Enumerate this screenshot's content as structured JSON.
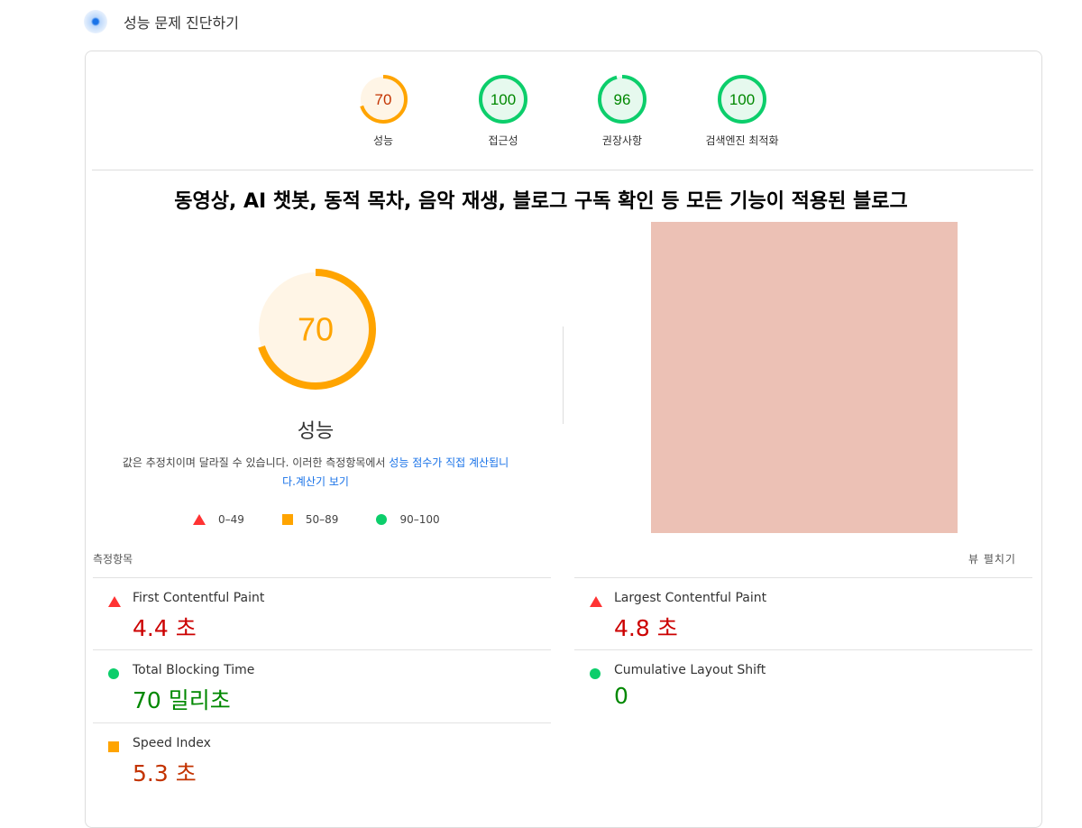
{
  "header": {
    "title": "성능 문제 진단하기"
  },
  "gauges": [
    {
      "score": 70,
      "label": "성능",
      "color": "#ffa400"
    },
    {
      "score": 100,
      "label": "접근성",
      "color": "#0cce6b"
    },
    {
      "score": 96,
      "label": "권장사항",
      "color": "#0cce6b"
    },
    {
      "score": 100,
      "label": "검색엔진 최적화",
      "color": "#0cce6b"
    }
  ],
  "page_title": "동영상, AI 챗봇, 동적 목차, 음악 재생, 블로그 구독 확인 등 모든 기능이 적용된 블로그",
  "main_gauge": {
    "score": 70,
    "label": "성능"
  },
  "note": {
    "text": "값은 추정치이며 달라질 수 있습니다. 이러한 측정항목에서 ",
    "link1": "성능 점수가 직접 계산됩니다.",
    "link2": "계산기 보기"
  },
  "legend": [
    "0–49",
    "50–89",
    "90–100"
  ],
  "metrics_header": "측정항목",
  "expand_label": "뷰 펼치기",
  "metrics": [
    {
      "name": "First Contentful Paint",
      "value": "4.4 초",
      "status": "fail"
    },
    {
      "name": "Largest Contentful Paint",
      "value": "4.8 초",
      "status": "fail"
    },
    {
      "name": "Total Blocking Time",
      "value": "70 밀리초",
      "status": "pass"
    },
    {
      "name": "Cumulative Layout Shift",
      "value": "0",
      "status": "pass"
    },
    {
      "name": "Speed Index",
      "value": "5.3 초",
      "status": "average"
    }
  ],
  "colors": {
    "fail": "#cc0000",
    "average": "#c33300",
    "pass": "#008800"
  }
}
